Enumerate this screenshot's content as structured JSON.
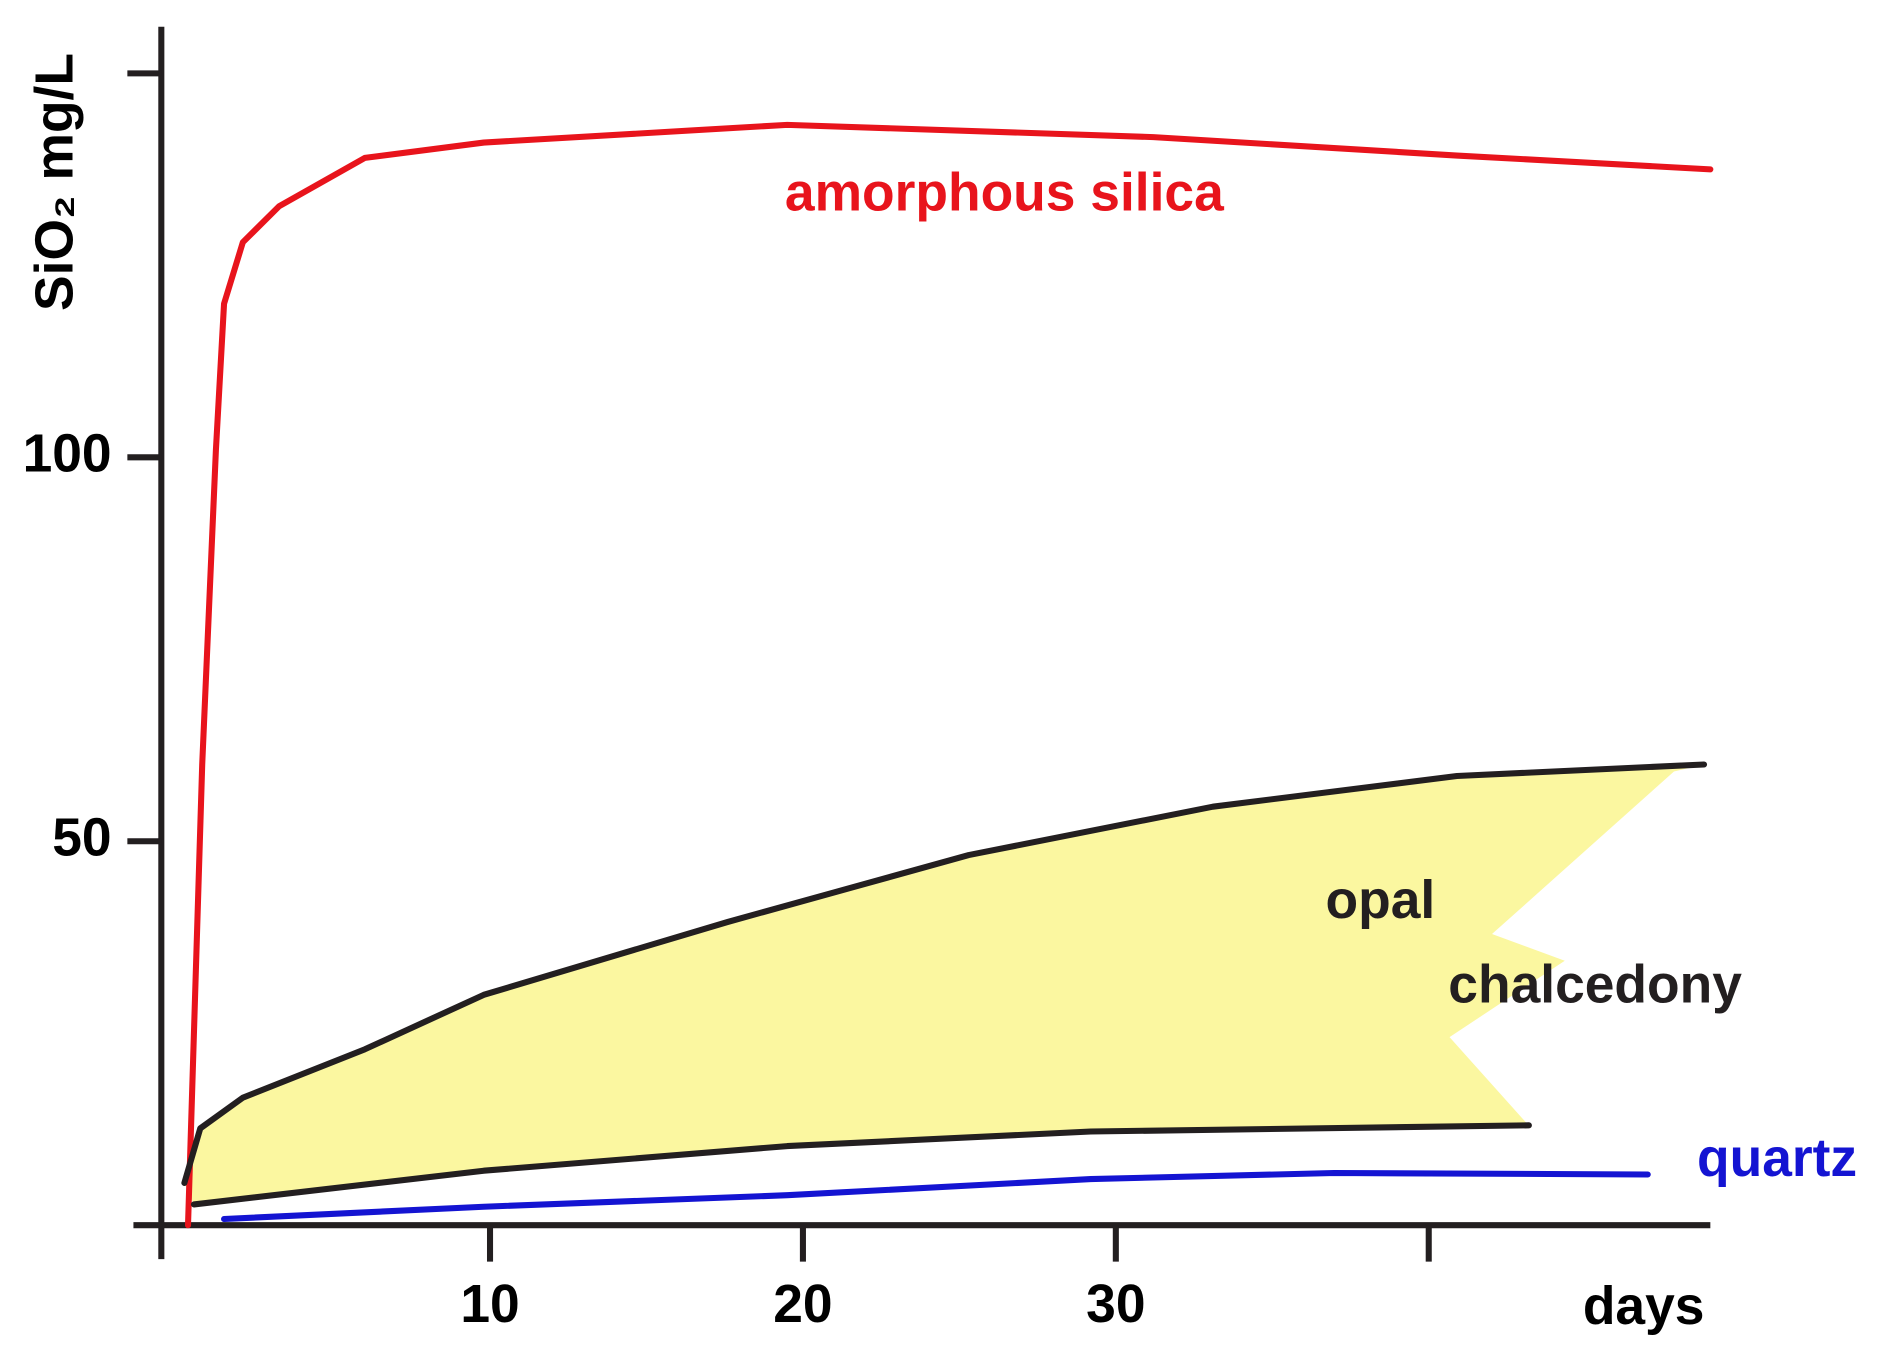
{
  "chart_data": {
    "type": "line",
    "y_label": "SiO₂ mg/L",
    "x_label": "days",
    "xlim": [
      -0.4,
      49
    ],
    "ylim": [
      0,
      156
    ],
    "xticks": [
      10,
      20,
      30,
      {
        "value": 40,
        "label": null
      }
    ],
    "yticks": [
      50,
      100,
      {
        "value": 150,
        "label": null
      }
    ],
    "series": [
      {
        "name": "amorphous silica",
        "color": "#e8141c",
        "x": [
          0.35,
          0.8,
          1.24,
          1.5,
          2.1,
          3.26,
          6,
          9.8,
          19.5,
          31.2,
          40.9,
          49
        ],
        "values": [
          0,
          60,
          101,
          120,
          128,
          132.7,
          139,
          141,
          143.3,
          141.7,
          139.3,
          137.5
        ]
      },
      {
        "name": "opal",
        "color": "#231f20",
        "x": [
          0.23,
          0.74,
          2.1,
          6,
          9.8,
          17.6,
          25.3,
          33.1,
          40.9,
          48.8
        ],
        "values": [
          5.5,
          12.6,
          16.6,
          22.9,
          30,
          39.5,
          48.2,
          54.5,
          58.5,
          60
        ]
      },
      {
        "name": "chalcedony",
        "color": "#231f20",
        "x": [
          0.54,
          9.8,
          19.5,
          29.2,
          43.2
        ],
        "values": [
          2.7,
          7.1,
          10.3,
          12.2,
          13
        ]
      },
      {
        "name": "quartz",
        "color": "#1414d2",
        "x": [
          1.5,
          9.8,
          19.5,
          29.2,
          36.98,
          47
        ],
        "values": [
          0.8,
          2.4,
          3.9,
          6,
          6.8,
          6.6
        ]
      }
    ]
  }
}
